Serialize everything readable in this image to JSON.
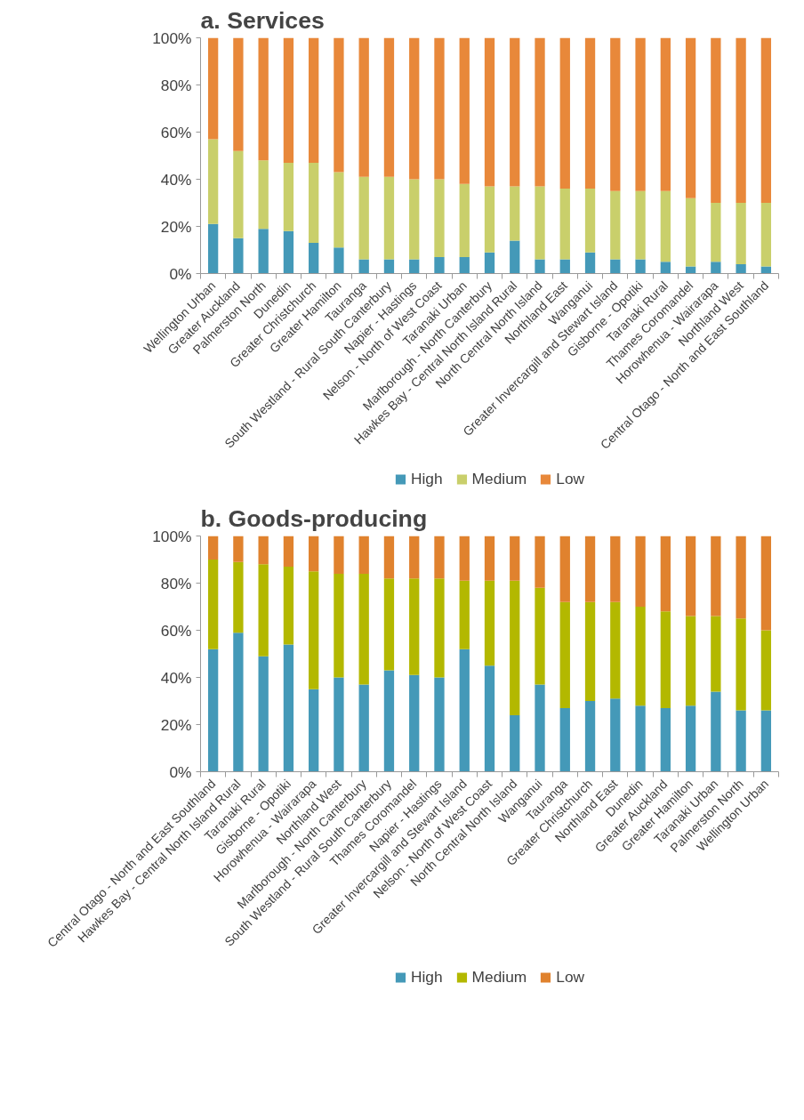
{
  "chart_data": [
    {
      "type": "bar",
      "title": "a.   Services",
      "stacked": true,
      "legend": "bottom",
      "grid": false,
      "categories": [
        "Wellington Urban",
        "Greater Auckland",
        "Palmerston North",
        "Dunedin",
        "Greater Christchurch",
        "Greater Hamilton",
        "Tauranga",
        "South Westland - Rural South Canterbury",
        "Napier - Hastings",
        "Nelson - North of West Coast",
        "Taranaki Urban",
        "Marlborough - North Canterbury",
        "Hawkes Bay - Central North Island Rural",
        "North Central North Island",
        "Northland East",
        "Wanganui",
        "Greater Invercargill and Stewart Island",
        "Gisborne - Opotiki",
        "Taranaki Rural",
        "Thames Coromandel",
        "Horowhenua - Wairarapa",
        "Northland West",
        "Central Otago - North and East Southland"
      ],
      "series": [
        {
          "name": "High",
          "color": "#4499b8",
          "values": [
            21,
            15,
            19,
            18,
            13,
            11,
            6,
            6,
            6,
            7,
            7,
            9,
            14,
            6,
            6,
            9,
            6,
            6,
            5,
            3,
            5,
            4,
            3
          ]
        },
        {
          "name": "Medium",
          "color": "#c9cf6b",
          "values": [
            36,
            37,
            29,
            29,
            34,
            32,
            35,
            35,
            34,
            33,
            31,
            28,
            23,
            31,
            30,
            27,
            29,
            29,
            30,
            29,
            25,
            26,
            27
          ]
        },
        {
          "name": "Low",
          "color": "#e8883a",
          "values": [
            43,
            48,
            52,
            53,
            53,
            57,
            59,
            59,
            60,
            60,
            62,
            63,
            63,
            63,
            64,
            64,
            65,
            65,
            65,
            68,
            70,
            70,
            70
          ]
        }
      ],
      "ylim": [
        0,
        100
      ],
      "yticks": [
        {
          "value": 0,
          "label": "0%"
        },
        {
          "value": 20,
          "label": "20%"
        },
        {
          "value": 40,
          "label": "40%"
        },
        {
          "value": 60,
          "label": "60%"
        },
        {
          "value": 80,
          "label": "80%"
        },
        {
          "value": 100,
          "label": "100%"
        }
      ]
    },
    {
      "type": "bar",
      "title": "b.   Goods-producing",
      "stacked": true,
      "legend": "bottom",
      "grid": false,
      "categories": [
        "Central Otago - North and East Southland",
        "Hawkes Bay - Central North Island Rural",
        "Taranaki Rural",
        "Gisborne - Opotiki",
        "Horowhenua - Wairarapa",
        "Northland West",
        "Marlborough - North Canterbury",
        "South Westland - Rural South Canterbury",
        "Thames Coromandel",
        "Napier - Hastings",
        "Greater Invercargill and Stewart Island",
        "Nelson - North of West Coast",
        "North Central North Island",
        "Wanganui",
        "Tauranga",
        "Greater Christchurch",
        "Northland East",
        "Dunedin",
        "Greater Auckland",
        "Greater Hamilton",
        "Taranaki Urban",
        "Palmerston North",
        "Wellington Urban"
      ],
      "series": [
        {
          "name": "High",
          "color": "#4499b8",
          "values": [
            52,
            59,
            49,
            54,
            35,
            40,
            37,
            43,
            41,
            40,
            52,
            45,
            24,
            37,
            27,
            30,
            31,
            28,
            27,
            28,
            34,
            26,
            26
          ]
        },
        {
          "name": "Medium",
          "color": "#b3b800",
          "values": [
            38,
            30,
            39,
            33,
            50,
            44,
            47,
            39,
            41,
            42,
            29,
            36,
            57,
            41,
            45,
            42,
            41,
            42,
            41,
            38,
            32,
            39,
            34
          ]
        },
        {
          "name": "Low",
          "color": "#e0822e",
          "values": [
            10,
            11,
            12,
            13,
            15,
            16,
            16,
            18,
            18,
            18,
            19,
            19,
            19,
            22,
            28,
            28,
            28,
            30,
            32,
            34,
            34,
            35,
            40
          ]
        }
      ],
      "ylim": [
        0,
        100
      ],
      "yticks": [
        {
          "value": 0,
          "label": "0%"
        },
        {
          "value": 20,
          "label": "20%"
        },
        {
          "value": 40,
          "label": "40%"
        },
        {
          "value": 60,
          "label": "60%"
        },
        {
          "value": 80,
          "label": "80%"
        },
        {
          "value": 100,
          "label": "100%"
        }
      ]
    }
  ]
}
